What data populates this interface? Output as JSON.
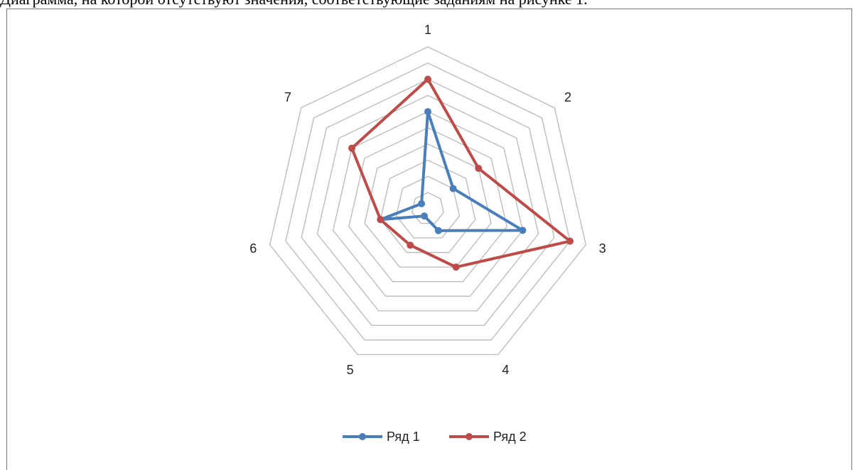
{
  "page": {
    "top_text": "Диаграмма, на которой отсутствуют значения, соответствующие заданиям на рисунке 1."
  },
  "chart_data": {
    "type": "radar",
    "categories": [
      "1",
      "2",
      "3",
      "4",
      "5",
      "6",
      "7"
    ],
    "r_max": 10,
    "grid_levels": 10,
    "series": [
      {
        "name": "Ряд 1",
        "color": "#4a7ebb",
        "values": [
          6,
          2,
          6,
          1.5,
          0.5,
          3,
          0.5
        ]
      },
      {
        "name": "Ряд 2",
        "color": "#be4b48",
        "values": [
          8,
          4,
          9,
          4,
          2.5,
          3,
          6
        ]
      }
    ],
    "legend_position": "bottom",
    "grid": true
  }
}
